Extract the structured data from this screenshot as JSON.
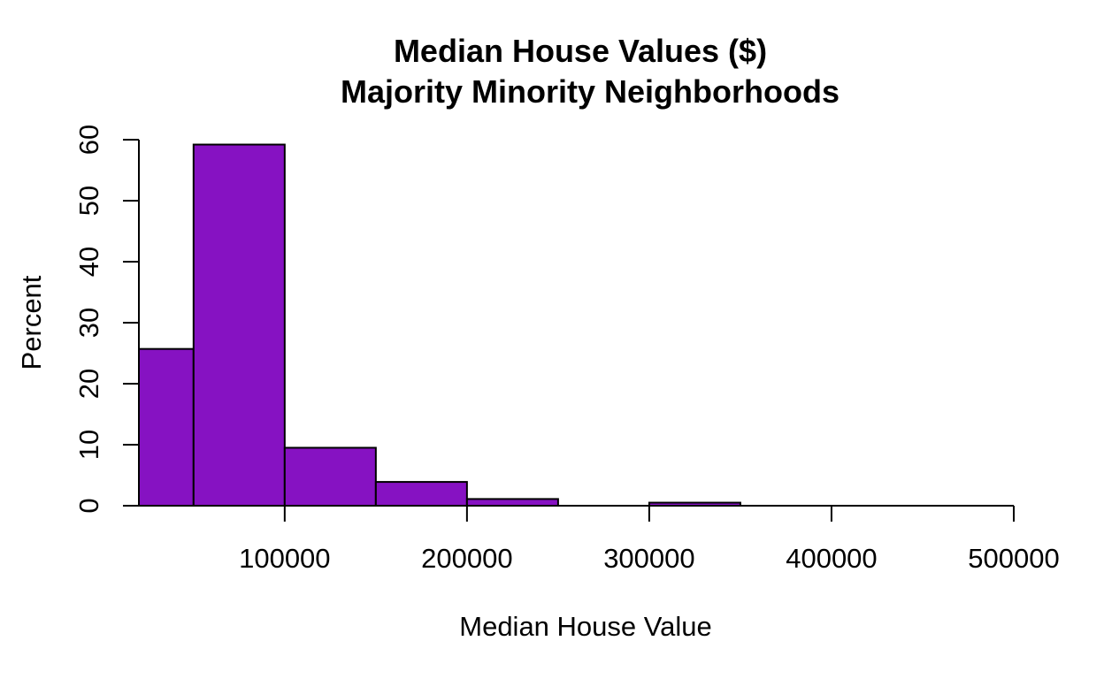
{
  "chart_data": {
    "type": "bar",
    "subtype": "histogram",
    "title": "Median House Values ($)",
    "subtitle": "Majority Minority Neighborhoods",
    "xlabel": "Median House Value",
    "ylabel": "Percent",
    "bins": [
      {
        "start": 20000,
        "end": 50000,
        "value": 25.7
      },
      {
        "start": 50000,
        "end": 100000,
        "value": 59.2
      },
      {
        "start": 100000,
        "end": 150000,
        "value": 9.5
      },
      {
        "start": 150000,
        "end": 200000,
        "value": 3.9
      },
      {
        "start": 200000,
        "end": 250000,
        "value": 1.1
      },
      {
        "start": 250000,
        "end": 300000,
        "value": 0.0
      },
      {
        "start": 300000,
        "end": 350000,
        "value": 0.5
      },
      {
        "start": 350000,
        "end": 400000,
        "value": 0.0
      },
      {
        "start": 400000,
        "end": 450000,
        "value": 0.0
      },
      {
        "start": 450000,
        "end": 500000,
        "value": 0.0
      }
    ],
    "xlim": [
      20000,
      500000
    ],
    "ylim": [
      0,
      60
    ],
    "x_ticks": [
      100000,
      200000,
      300000,
      400000,
      500000
    ],
    "x_tick_labels": [
      "100000",
      "200000",
      "300000",
      "400000",
      "500000"
    ],
    "y_ticks": [
      0,
      10,
      20,
      30,
      40,
      50,
      60
    ],
    "y_tick_labels": [
      "0",
      "10",
      "20",
      "30",
      "40",
      "50",
      "60"
    ],
    "bar_color": "#8612c2",
    "edge_color": "#000000",
    "grid": false
  }
}
